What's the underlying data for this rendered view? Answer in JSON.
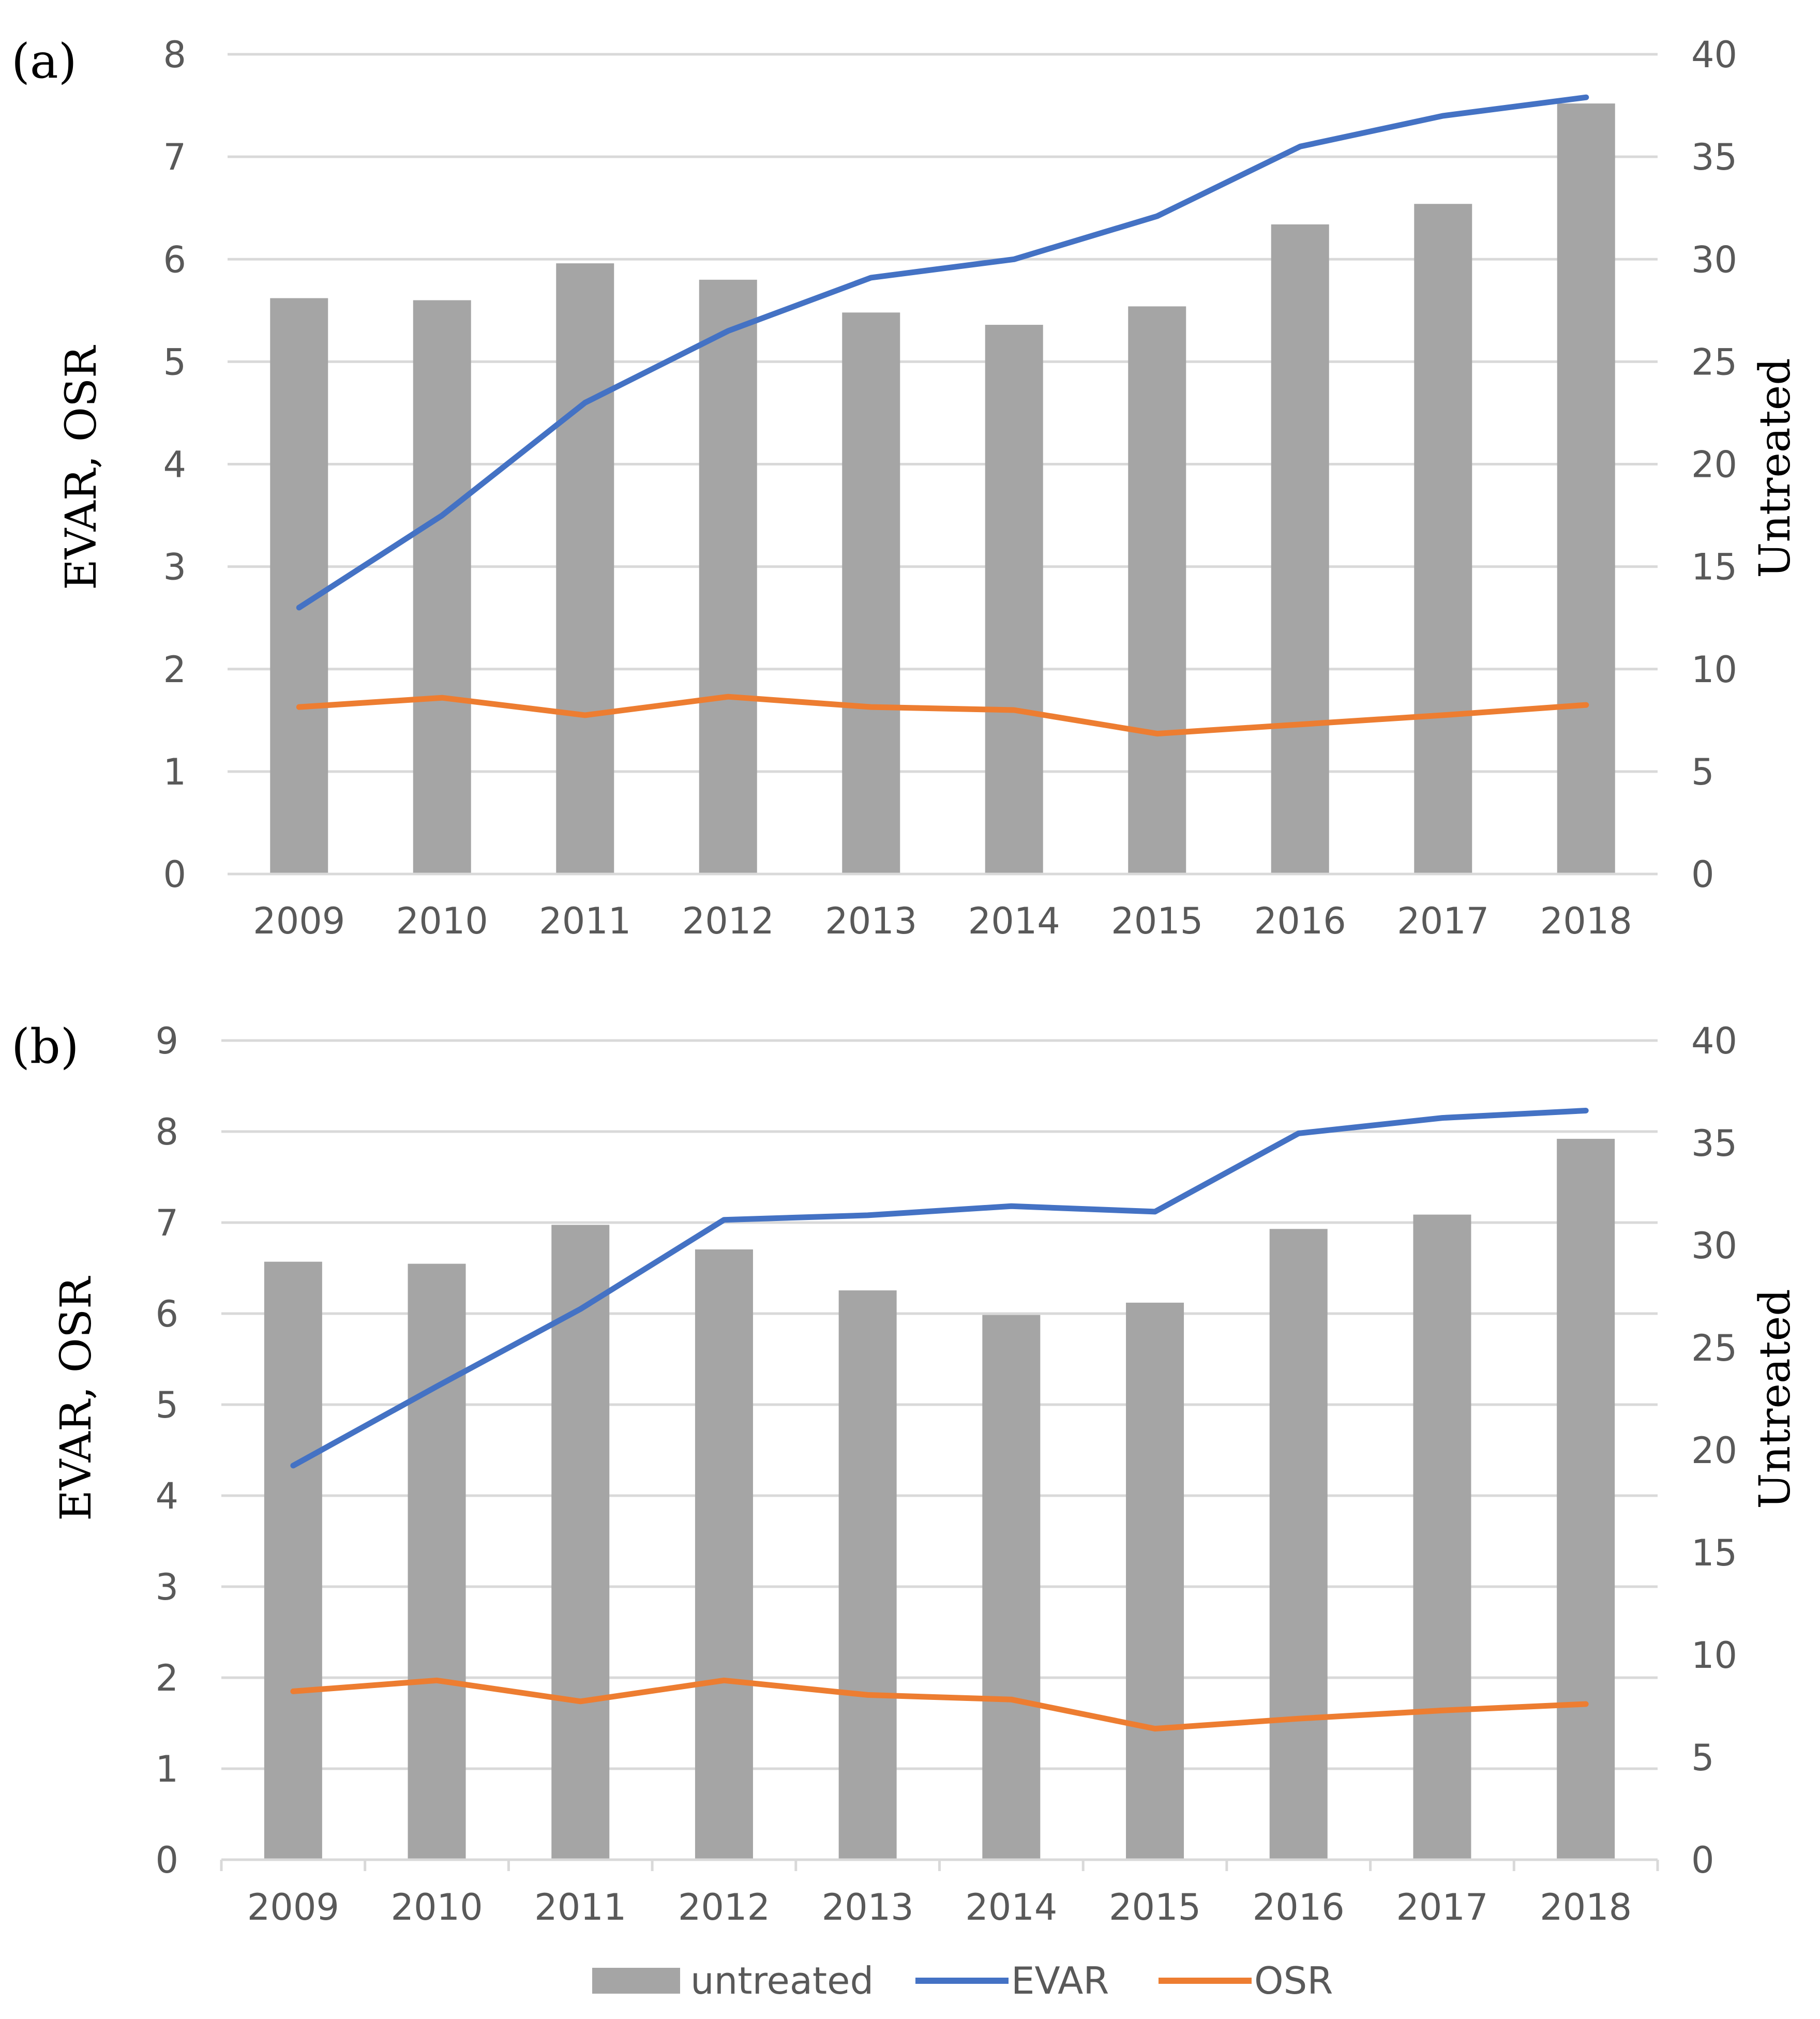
{
  "colors": {
    "untreated": "#a5a5a5",
    "evar": "#4472c4",
    "osr": "#ed7d31",
    "grid": "#d9d9d9",
    "tick": "#595959"
  },
  "legend": [
    {
      "key": "untreated",
      "label": "untreated"
    },
    {
      "key": "evar",
      "label": "EVAR"
    },
    {
      "key": "osr",
      "label": "OSR"
    }
  ],
  "chart_data": [
    {
      "type": "bar",
      "panel_label": "(a)",
      "categories": [
        "2009",
        "2010",
        "2011",
        "2012",
        "2013",
        "2014",
        "2015",
        "2016",
        "2017",
        "2018"
      ],
      "ylabel_left": "EVAR, OSR",
      "ylabel_right": "Untreated",
      "ylim_left": [
        0,
        8
      ],
      "ylim_right": [
        0,
        40
      ],
      "yticks_left": [
        "0",
        "1",
        "2",
        "3",
        "4",
        "5",
        "6",
        "7",
        "8"
      ],
      "yticks_right": [
        "0",
        "5",
        "10",
        "15",
        "20",
        "25",
        "30",
        "35",
        "40"
      ],
      "series": [
        {
          "key": "untreated",
          "name": "untreated",
          "type": "bar",
          "axis": "right",
          "values": [
            28.1,
            28.0,
            29.8,
            29.0,
            27.4,
            26.8,
            27.7,
            31.7,
            32.7,
            37.6
          ]
        },
        {
          "key": "evar",
          "name": "EVAR",
          "type": "line",
          "axis": "left",
          "values": [
            2.6,
            3.5,
            4.6,
            5.3,
            5.82,
            6.0,
            6.42,
            7.1,
            7.4,
            7.58
          ]
        },
        {
          "key": "osr",
          "name": "OSR",
          "type": "line",
          "axis": "left",
          "values": [
            1.63,
            1.72,
            1.55,
            1.73,
            1.63,
            1.6,
            1.37,
            1.46,
            1.55,
            1.65
          ]
        }
      ]
    },
    {
      "type": "bar",
      "panel_label": "(b)",
      "categories": [
        "2009",
        "2010",
        "2011",
        "2012",
        "2013",
        "2014",
        "2015",
        "2016",
        "2017",
        "2018"
      ],
      "ylabel_left": "EVAR, OSR",
      "ylabel_right": "Untreated",
      "ylim_left": [
        0,
        9
      ],
      "ylim_right": [
        0,
        40
      ],
      "yticks_left": [
        "0",
        "1",
        "2",
        "3",
        "4",
        "5",
        "6",
        "7",
        "8",
        "9"
      ],
      "yticks_right": [
        "0",
        "5",
        "10",
        "15",
        "20",
        "25",
        "30",
        "35",
        "40"
      ],
      "series": [
        {
          "key": "untreated",
          "name": "untreated",
          "type": "bar",
          "axis": "right",
          "values": [
            29.2,
            29.1,
            31.0,
            29.8,
            27.8,
            26.6,
            27.2,
            30.8,
            31.5,
            35.2
          ]
        },
        {
          "key": "evar",
          "name": "EVAR",
          "type": "line",
          "axis": "left",
          "values": [
            4.33,
            5.2,
            6.05,
            7.03,
            7.08,
            7.18,
            7.12,
            7.98,
            8.15,
            8.23
          ]
        },
        {
          "key": "osr",
          "name": "OSR",
          "type": "line",
          "axis": "left",
          "values": [
            1.85,
            1.97,
            1.74,
            1.97,
            1.81,
            1.76,
            1.44,
            1.55,
            1.64,
            1.71
          ]
        }
      ]
    }
  ]
}
